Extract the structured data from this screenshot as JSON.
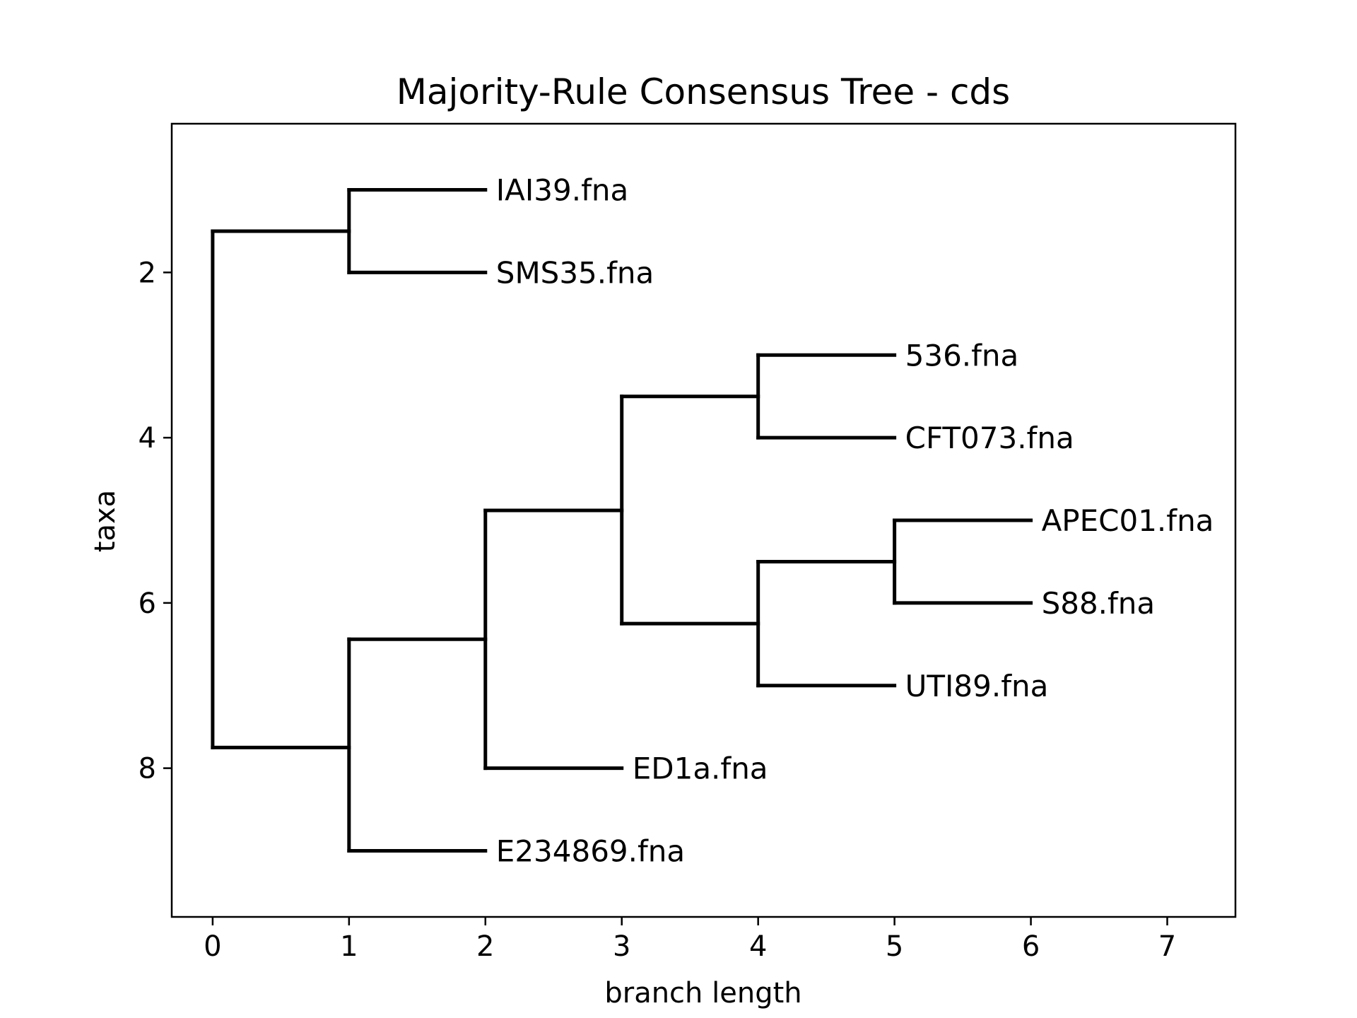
{
  "chart_data": {
    "type": "dendrogram",
    "title": "Majority-Rule Consensus Tree - cds",
    "xlabel": "branch length",
    "ylabel": "taxa",
    "xlim": [
      -0.3,
      7.5
    ],
    "ylim": [
      0.2,
      9.8
    ],
    "y_inverted": true,
    "xticks": [
      0,
      1,
      2,
      3,
      4,
      5,
      6,
      7
    ],
    "yticks": [
      2,
      4,
      6,
      8
    ],
    "grid": false,
    "leaves": [
      {
        "name": "IAI39.fna",
        "x": 2,
        "y": 1
      },
      {
        "name": "SMS35.fna",
        "x": 2,
        "y": 2
      },
      {
        "name": "536.fna",
        "x": 5,
        "y": 3
      },
      {
        "name": "CFT073.fna",
        "x": 5,
        "y": 4
      },
      {
        "name": "APEC01.fna",
        "x": 6,
        "y": 5
      },
      {
        "name": "S88.fna",
        "x": 6,
        "y": 6
      },
      {
        "name": "UTI89.fna",
        "x": 5,
        "y": 7
      },
      {
        "name": "ED1a.fna",
        "x": 3,
        "y": 8
      },
      {
        "name": "E234869.fna",
        "x": 2,
        "y": 9
      }
    ],
    "clades": [
      {
        "x": 0,
        "y": 1.5,
        "children": [
          [
            1,
            1.5
          ],
          [
            1,
            7.75
          ]
        ],
        "parent_x": 0
      },
      {
        "x": 1,
        "y": 1.5,
        "children": [
          [
            2,
            1
          ],
          [
            2,
            2
          ]
        ],
        "parent_x": 0
      },
      {
        "x": 1,
        "y": 7.75,
        "children": [
          [
            2,
            6.44
          ],
          [
            2,
            9
          ]
        ],
        "parent_x": 0
      },
      {
        "x": 2,
        "y": 6.44,
        "children": [
          [
            3,
            4.88
          ],
          [
            3,
            8
          ]
        ],
        "parent_x": 1
      },
      {
        "x": 3,
        "y": 4.88,
        "children": [
          [
            4,
            3.5
          ],
          [
            4,
            6.25
          ]
        ],
        "parent_x": 2
      },
      {
        "x": 4,
        "y": 3.5,
        "children": [
          [
            5,
            3
          ],
          [
            5,
            4
          ]
        ],
        "parent_x": 3
      },
      {
        "x": 4,
        "y": 6.25,
        "children": [
          [
            5,
            5.5
          ],
          [
            5,
            7
          ]
        ],
        "parent_x": 3
      },
      {
        "x": 5,
        "y": 5.5,
        "children": [
          [
            6,
            5
          ],
          [
            6,
            6
          ]
        ],
        "parent_x": 4
      }
    ]
  }
}
